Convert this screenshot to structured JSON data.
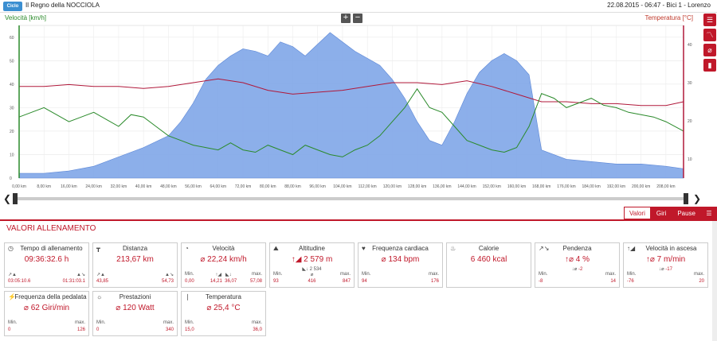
{
  "header": {
    "logo": "Ciclo",
    "title": "Il Regno della NOCCIOLA",
    "session": "22.08.2015  -  06:47  -  Bici 1  -  Lorenzo"
  },
  "chart": {
    "left_axis_title": "Velocità [km/h]",
    "right_axis_title": "Temperatura [°C]",
    "zoom_in": "+",
    "zoom_out": "−"
  },
  "colors": {
    "accent": "#c0182a",
    "speed": "#2a8a2a",
    "temperature": "#b0183a",
    "altitude_fill": "#7fa6e8"
  },
  "chart_data": {
    "type": "line",
    "x_ticks": [
      "0,00 km",
      "8,00 km",
      "16,00 km",
      "24,00 km",
      "32,00 km",
      "40,00 km",
      "48,00 km",
      "56,00 km",
      "64,00 km",
      "72,00 km",
      "80,00 km",
      "88,00 km",
      "96,00 km",
      "104,00 km",
      "112,00 km",
      "120,00 km",
      "128,00 km",
      "136,00 km",
      "144,00 km",
      "152,00 km",
      "160,00 km",
      "168,00 km",
      "176,00 km",
      "184,00 km",
      "192,00 km",
      "200,00 km",
      "208,00 km"
    ],
    "xlim": [
      0,
      213.67
    ],
    "y_left_ticks": [
      "0",
      "10",
      "20",
      "30",
      "40",
      "50",
      "60"
    ],
    "ylim_left": [
      0,
      65
    ],
    "y_right_ticks": [
      "10",
      "20",
      "30",
      "40"
    ],
    "ylim_right": [
      5,
      45
    ],
    "altitude": {
      "x": [
        0,
        8,
        16,
        24,
        32,
        40,
        48,
        52,
        56,
        60,
        64,
        68,
        72,
        76,
        80,
        84,
        88,
        92,
        96,
        100,
        104,
        108,
        112,
        116,
        120,
        124,
        128,
        132,
        136,
        140,
        144,
        148,
        152,
        156,
        160,
        164,
        168,
        176,
        184,
        192,
        200,
        208,
        213.67
      ],
      "values": [
        2,
        2,
        3,
        5,
        9,
        13,
        18,
        24,
        32,
        42,
        48,
        52,
        55,
        54,
        52,
        58,
        56,
        52,
        57,
        62,
        58,
        54,
        51,
        48,
        42,
        34,
        24,
        16,
        14,
        24,
        36,
        45,
        50,
        53,
        50,
        44,
        12,
        8,
        7,
        6,
        6,
        5,
        4
      ]
    },
    "speed": {
      "x": [
        0,
        4,
        8,
        12,
        16,
        20,
        24,
        28,
        32,
        36,
        40,
        44,
        48,
        52,
        56,
        60,
        64,
        68,
        72,
        76,
        80,
        84,
        88,
        92,
        96,
        100,
        104,
        108,
        112,
        116,
        120,
        124,
        128,
        132,
        136,
        140,
        144,
        148,
        152,
        156,
        160,
        164,
        168,
        172,
        176,
        180,
        184,
        188,
        192,
        196,
        200,
        204,
        208,
        213.67
      ],
      "values": [
        26,
        28,
        30,
        27,
        24,
        26,
        28,
        25,
        22,
        27,
        26,
        22,
        18,
        16,
        14,
        13,
        12,
        15,
        12,
        11,
        14,
        12,
        10,
        14,
        12,
        10,
        9,
        12,
        14,
        18,
        24,
        30,
        38,
        30,
        28,
        22,
        16,
        14,
        12,
        11,
        13,
        22,
        36,
        34,
        30,
        32,
        34,
        31,
        30,
        28,
        27,
        26,
        24,
        20
      ]
    },
    "temperature": {
      "x": [
        0,
        8,
        16,
        24,
        32,
        40,
        48,
        56,
        64,
        72,
        80,
        88,
        96,
        104,
        112,
        120,
        128,
        136,
        144,
        152,
        160,
        168,
        176,
        184,
        192,
        200,
        208,
        213.67
      ],
      "values": [
        29,
        29,
        29.5,
        29,
        29,
        28.5,
        29,
        30,
        31,
        30,
        28,
        27,
        27.5,
        28,
        29,
        30,
        30,
        29.5,
        30.5,
        29,
        27,
        25,
        25,
        24.5,
        24.5,
        24,
        24,
        25
      ]
    }
  },
  "scroll": {
    "left": "❮",
    "right": "❯"
  },
  "tabs": [
    {
      "label": "Valori"
    },
    {
      "label": "Giri"
    },
    {
      "label": "Pause"
    }
  ],
  "section_title": "VALORI ALLENAMENTO",
  "cards": {
    "time": {
      "title": "Tempo di allenamento",
      "value": "09:36:32.6 h",
      "min": "03:05:10.6",
      "max": "01:31:03.1"
    },
    "distance": {
      "title": "Distanza",
      "value": "213,67 km",
      "min": "43,85",
      "max": "54,73"
    },
    "speed": {
      "title": "Velocità",
      "value": "⌀ 22,24 km/h",
      "min_label": "Min.",
      "max_label": "max.",
      "min": "0,00",
      "mid1": "14,21",
      "mid2": "36,07",
      "max": "57,08"
    },
    "altitude": {
      "title": "Altitudine",
      "value": "2 579 m",
      "sub": "2 534",
      "min_label": "Min.",
      "max_label": "max.",
      "min": "93",
      "mid": "416",
      "max": "847"
    },
    "heart": {
      "title": "Frequenza cardiaca",
      "value": "⌀ 134 bpm",
      "min_label": "Min.",
      "max_label": "max.",
      "min": "94",
      "max": "176"
    },
    "calories": {
      "title": "Calorie",
      "value": "6 460 kcal"
    },
    "slope": {
      "title": "Pendenza",
      "value": "4 %",
      "sub": "-2",
      "min_label": "Min.",
      "max_label": "max.",
      "min": "-8",
      "max": "14"
    },
    "climb": {
      "title": "Velocità in ascesa",
      "value": "7 m/min",
      "sub": "-17",
      "min_label": "Min.",
      "max_label": "max.",
      "min": "-76",
      "max": "20"
    },
    "cadence": {
      "title": "Frequenza della pedalata",
      "value": "⌀ 62 Giri/min",
      "min_label": "Min.",
      "max_label": "max.",
      "min": "0",
      "max": "126"
    },
    "power": {
      "title": "Prestazioni",
      "value": "⌀ 120 Watt",
      "min_label": "Min.",
      "max_label": "max.",
      "min": "0",
      "max": "340"
    },
    "temperature": {
      "title": "Temperatura",
      "value": "⌀ 25,4 °C",
      "min_label": "Min.",
      "max_label": "max.",
      "min": "15,0",
      "max": "36,0"
    }
  }
}
